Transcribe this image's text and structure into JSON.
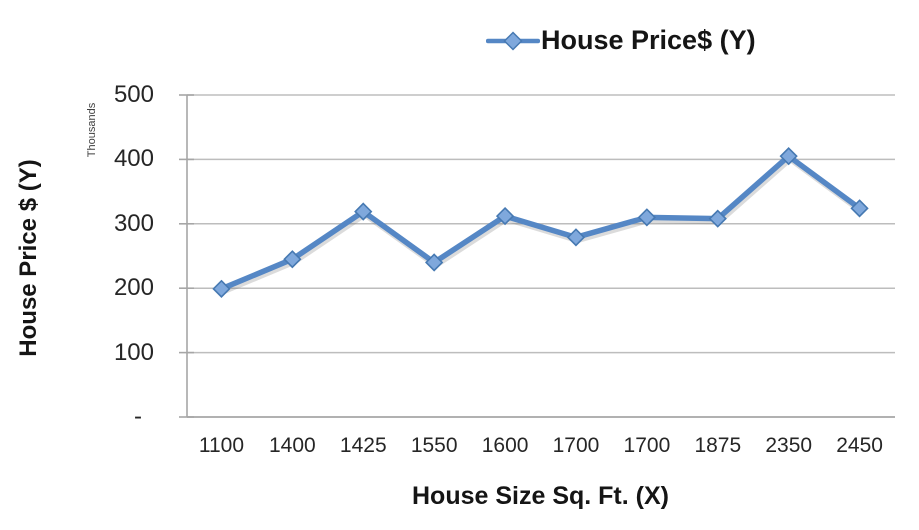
{
  "chart_data": {
    "type": "line",
    "title": "",
    "legend": {
      "label": "House Price$ (Y)",
      "position": "top"
    },
    "categories": [
      "1100",
      "1400",
      "1425",
      "1550",
      "1600",
      "1700",
      "1700",
      "1875",
      "2350",
      "2450"
    ],
    "series": [
      {
        "name": "House Price$ (Y)",
        "values": [
          199,
          245,
          319,
          240,
          312,
          279,
          310,
          308,
          405,
          324
        ]
      }
    ],
    "xlabel": "House Size Sq. Ft. (X)",
    "ylabel": "House Price  $ (Y)",
    "y_units_label": "Thousands",
    "y_axis": {
      "tick_labels": [
        "-",
        "100",
        "200",
        "300",
        "400",
        "500"
      ],
      "tick_values": [
        0,
        100,
        200,
        300,
        400,
        500
      ]
    },
    "ylim": [
      0,
      500
    ],
    "grid": "horizontal",
    "marker": "diamond",
    "colors": {
      "line": "#5587C5",
      "marker_fill": "#7FA8DC",
      "marker_stroke": "#4679B2",
      "grid": "#BDBDBD",
      "axis": "#A6A6A6",
      "text": "#1A1A1A"
    }
  }
}
